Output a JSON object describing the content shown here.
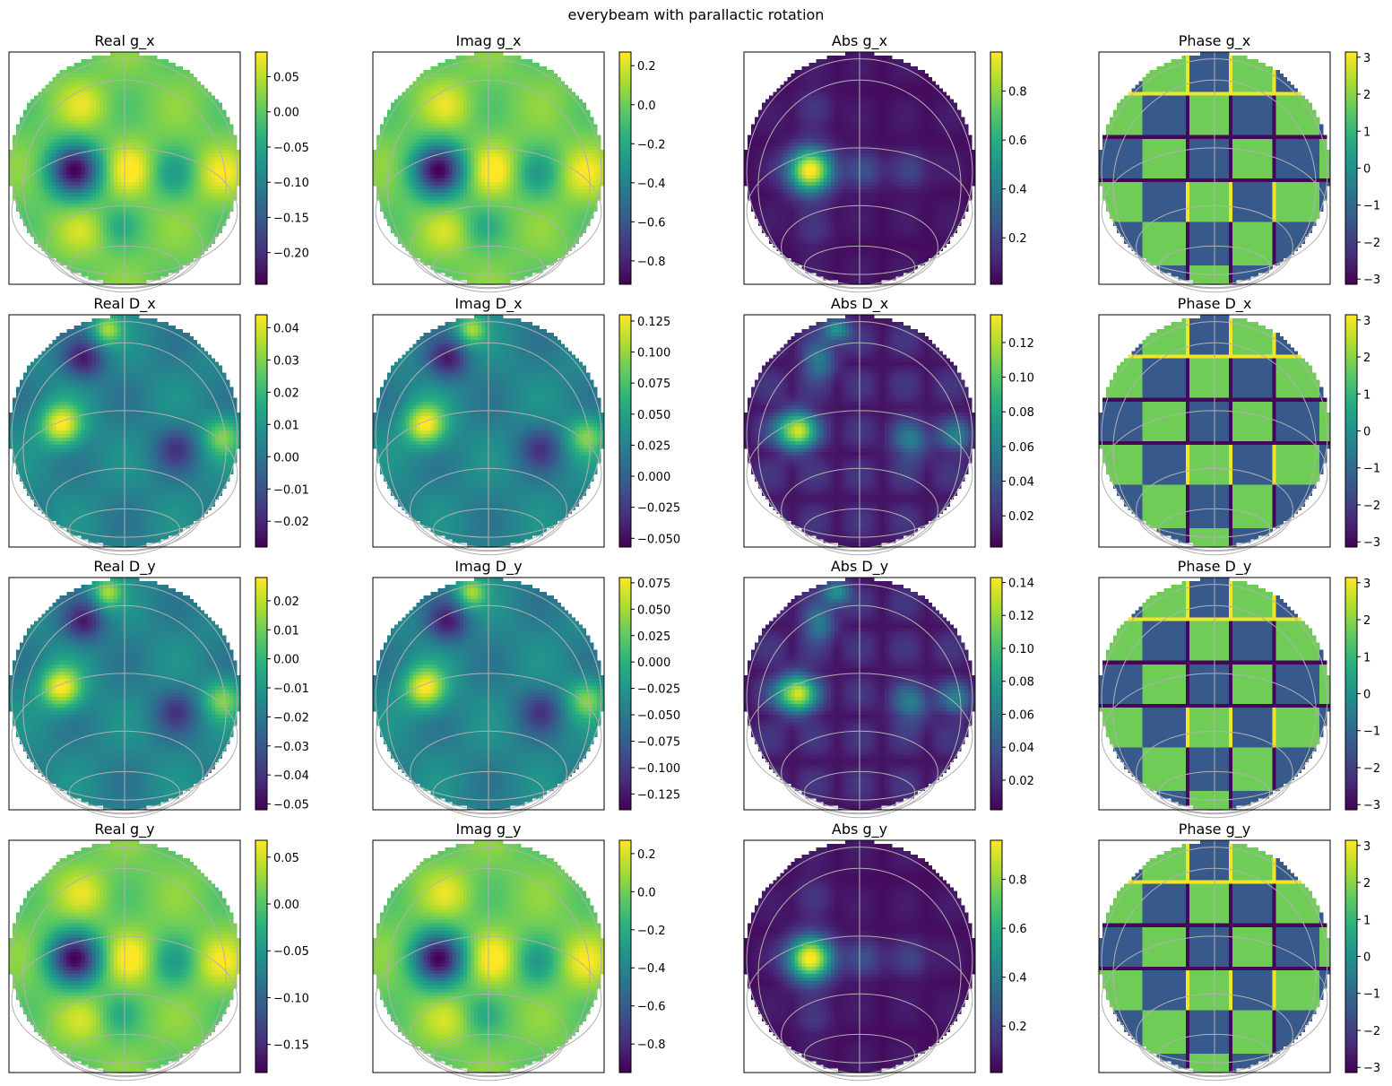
{
  "figure": {
    "suptitle": "everybeam with parallactic rotation"
  },
  "chart_data": [
    {
      "type": "heatmap",
      "title": "Real g_x",
      "pattern": "main",
      "colorbar": {
        "range": [
          -0.245,
          0.085
        ],
        "ticks": [
          "0.05",
          "0.00",
          "−0.05",
          "−0.10",
          "−0.15",
          "−0.20"
        ],
        "tick_values": [
          0.05,
          0.0,
          -0.05,
          -0.1,
          -0.15,
          -0.2
        ]
      }
    },
    {
      "type": "heatmap",
      "title": "Imag g_x",
      "pattern": "main",
      "colorbar": {
        "range": [
          -0.92,
          0.27
        ],
        "ticks": [
          "0.2",
          "0.0",
          "−0.2",
          "−0.4",
          "−0.6",
          "−0.8"
        ],
        "tick_values": [
          0.2,
          0.0,
          -0.2,
          -0.4,
          -0.6,
          -0.8
        ]
      }
    },
    {
      "type": "heatmap",
      "title": "Abs g_x",
      "pattern": "abs",
      "colorbar": {
        "range": [
          0.01,
          0.96
        ],
        "ticks": [
          "0.8",
          "0.6",
          "0.4",
          "0.2"
        ],
        "tick_values": [
          0.8,
          0.6,
          0.4,
          0.2
        ]
      }
    },
    {
      "type": "heatmap",
      "title": "Phase g_x",
      "pattern": "phase",
      "colorbar": {
        "range": [
          -3.14,
          3.14
        ],
        "ticks": [
          "3",
          "2",
          "1",
          "0",
          "−1",
          "−2",
          "−3"
        ],
        "tick_values": [
          3,
          2,
          1,
          0,
          -1,
          -2,
          -3
        ]
      }
    },
    {
      "type": "heatmap",
      "title": "Real D_x",
      "pattern": "dlow",
      "colorbar": {
        "range": [
          -0.028,
          0.044
        ],
        "ticks": [
          "0.04",
          "0.03",
          "0.02",
          "0.01",
          "0.00",
          "−0.01",
          "−0.02"
        ],
        "tick_values": [
          0.04,
          0.03,
          0.02,
          0.01,
          0.0,
          -0.01,
          -0.02
        ]
      }
    },
    {
      "type": "heatmap",
      "title": "Imag D_x",
      "pattern": "dlow",
      "colorbar": {
        "range": [
          -0.057,
          0.13
        ],
        "ticks": [
          "0.125",
          "0.100",
          "0.075",
          "0.050",
          "0.025",
          "0.000",
          "−0.025",
          "−0.050"
        ],
        "tick_values": [
          0.125,
          0.1,
          0.075,
          0.05,
          0.025,
          0.0,
          -0.025,
          -0.05
        ]
      }
    },
    {
      "type": "heatmap",
      "title": "Abs D_x",
      "pattern": "dabs",
      "colorbar": {
        "range": [
          0.002,
          0.136
        ],
        "ticks": [
          "0.12",
          "0.10",
          "0.08",
          "0.06",
          "0.04",
          "0.02"
        ],
        "tick_values": [
          0.12,
          0.1,
          0.08,
          0.06,
          0.04,
          0.02
        ]
      }
    },
    {
      "type": "heatmap",
      "title": "Phase D_x",
      "pattern": "phase",
      "colorbar": {
        "range": [
          -3.14,
          3.14
        ],
        "ticks": [
          "3",
          "2",
          "1",
          "0",
          "−1",
          "−2",
          "−3"
        ],
        "tick_values": [
          3,
          2,
          1,
          0,
          -1,
          -2,
          -3
        ]
      }
    },
    {
      "type": "heatmap",
      "title": "Real D_y",
      "pattern": "dlow",
      "colorbar": {
        "range": [
          -0.052,
          0.028
        ],
        "ticks": [
          "0.02",
          "0.01",
          "0.00",
          "−0.01",
          "−0.02",
          "−0.03",
          "−0.04",
          "−0.05"
        ],
        "tick_values": [
          0.02,
          0.01,
          0.0,
          -0.01,
          -0.02,
          -0.03,
          -0.04,
          -0.05
        ]
      }
    },
    {
      "type": "heatmap",
      "title": "Imag D_y",
      "pattern": "dlow",
      "colorbar": {
        "range": [
          -0.14,
          0.08
        ],
        "ticks": [
          "0.075",
          "0.050",
          "0.025",
          "0.000",
          "−0.025",
          "−0.050",
          "−0.075",
          "−0.100",
          "−0.125"
        ],
        "tick_values": [
          0.075,
          0.05,
          0.025,
          0.0,
          -0.025,
          -0.05,
          -0.075,
          -0.1,
          -0.125
        ]
      }
    },
    {
      "type": "heatmap",
      "title": "Abs D_y",
      "pattern": "dabs",
      "colorbar": {
        "range": [
          0.002,
          0.143
        ],
        "ticks": [
          "0.14",
          "0.12",
          "0.10",
          "0.08",
          "0.06",
          "0.04",
          "0.02"
        ],
        "tick_values": [
          0.14,
          0.12,
          0.1,
          0.08,
          0.06,
          0.04,
          0.02
        ]
      }
    },
    {
      "type": "heatmap",
      "title": "Phase D_y",
      "pattern": "phase",
      "colorbar": {
        "range": [
          -3.14,
          3.14
        ],
        "ticks": [
          "3",
          "2",
          "1",
          "0",
          "−1",
          "−2",
          "−3"
        ],
        "tick_values": [
          3,
          2,
          1,
          0,
          -1,
          -2,
          -3
        ]
      }
    },
    {
      "type": "heatmap",
      "title": "Real g_y",
      "pattern": "main",
      "colorbar": {
        "range": [
          -0.18,
          0.068
        ],
        "ticks": [
          "0.05",
          "0.00",
          "−0.05",
          "−0.10",
          "−0.15"
        ],
        "tick_values": [
          0.05,
          0.0,
          -0.05,
          -0.1,
          -0.15
        ]
      }
    },
    {
      "type": "heatmap",
      "title": "Imag g_y",
      "pattern": "main",
      "colorbar": {
        "range": [
          -0.95,
          0.27
        ],
        "ticks": [
          "0.2",
          "0.0",
          "−0.2",
          "−0.4",
          "−0.6",
          "−0.8"
        ],
        "tick_values": [
          0.2,
          0.0,
          -0.2,
          -0.4,
          -0.6,
          -0.8
        ]
      }
    },
    {
      "type": "heatmap",
      "title": "Abs g_y",
      "pattern": "abs",
      "colorbar": {
        "range": [
          0.01,
          0.96
        ],
        "ticks": [
          "0.8",
          "0.6",
          "0.4",
          "0.2"
        ],
        "tick_values": [
          0.8,
          0.6,
          0.4,
          0.2
        ]
      }
    },
    {
      "type": "heatmap",
      "title": "Phase g_y",
      "pattern": "phase",
      "colorbar": {
        "range": [
          -3.14,
          3.14
        ],
        "ticks": [
          "3",
          "2",
          "1",
          "0",
          "−1",
          "−2",
          "−3"
        ],
        "tick_values": [
          3,
          2,
          1,
          0,
          -1,
          -2,
          -3
        ]
      }
    }
  ]
}
